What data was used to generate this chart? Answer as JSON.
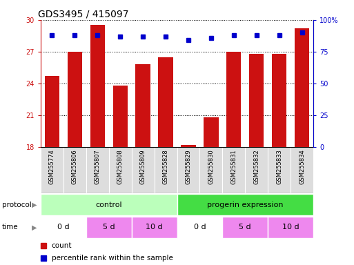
{
  "title": "GDS3495 / 415097",
  "samples": [
    "GSM255774",
    "GSM255806",
    "GSM255807",
    "GSM255808",
    "GSM255809",
    "GSM255828",
    "GSM255829",
    "GSM255830",
    "GSM255831",
    "GSM255832",
    "GSM255833",
    "GSM255834"
  ],
  "counts": [
    24.7,
    27.0,
    29.5,
    23.8,
    25.8,
    26.5,
    18.2,
    20.8,
    27.0,
    26.8,
    26.8,
    29.2
  ],
  "percentiles": [
    88,
    88,
    88,
    87,
    87,
    87,
    84,
    86,
    88,
    88,
    88,
    90
  ],
  "ylim_left": [
    18,
    30
  ],
  "yticks_left": [
    18,
    21,
    24,
    27,
    30
  ],
  "ylim_right": [
    0,
    100
  ],
  "yticks_right": [
    0,
    25,
    50,
    75,
    100
  ],
  "bar_color": "#cc1111",
  "dot_color": "#0000cc",
  "protocol_labels": [
    "control",
    "progerin expression"
  ],
  "protocol_colors": [
    "#bbffbb",
    "#44dd44"
  ],
  "protocol_spans_samples": [
    6,
    6
  ],
  "time_labels": [
    "0 d",
    "5 d",
    "10 d",
    "0 d",
    "5 d",
    "10 d"
  ],
  "time_colors": [
    "#ffffff",
    "#ee88ee",
    "#ee88ee",
    "#ffffff",
    "#ee88ee",
    "#ee88ee"
  ],
  "time_spans_samples": [
    2,
    2,
    2,
    2,
    2,
    2
  ],
  "legend_count_color": "#cc1111",
  "legend_pct_color": "#0000cc",
  "background_color": "#ffffff",
  "title_fontsize": 10,
  "tick_fontsize": 7,
  "label_fontsize": 8,
  "sample_label_fontsize": 6,
  "xtick_bg_color": "#dddddd",
  "left_label_color": "#888888"
}
